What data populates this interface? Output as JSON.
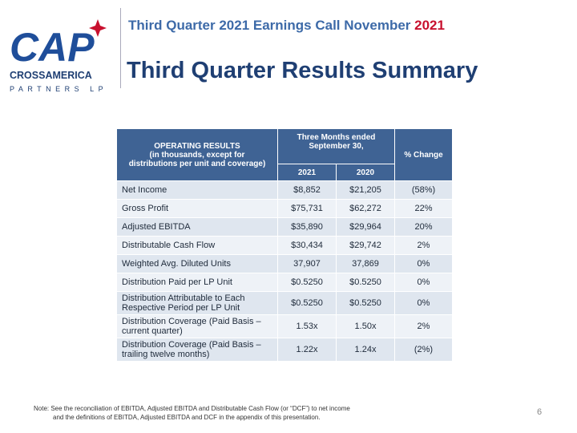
{
  "header": {
    "logo": {
      "mark": "CAP",
      "company": "CROSSAMERICA",
      "sub": "PARTNERS LP"
    },
    "event": "Third Quarter 2021 Earnings Call November",
    "event_year": "2021",
    "title": "Third Quarter Results Summary"
  },
  "table": {
    "header": {
      "first": [
        "OPERATING RESULTS",
        "(in thousands, except for",
        "distributions per unit and coverage)"
      ],
      "period": [
        "Three Months ended",
        "September 30,"
      ],
      "years": [
        "2021",
        "2020"
      ],
      "change": "% Change"
    },
    "rows": [
      [
        "Net Income",
        "$8,852",
        "$21,205",
        "(58%)"
      ],
      [
        "Gross Profit",
        "$75,731",
        "$62,272",
        "22%"
      ],
      [
        "Adjusted EBITDA",
        "$35,890",
        "$29,964",
        "20%"
      ],
      [
        "Distributable Cash Flow",
        "$30,434",
        "$29,742",
        "2%"
      ],
      [
        "Weighted Avg. Diluted Units",
        "37,907",
        "37,869",
        "0%"
      ],
      [
        "Distribution Paid per LP Unit",
        "$0.5250",
        "$0.5250",
        "0%"
      ],
      [
        "Distribution Attributable to Each Respective Period per LP Unit",
        "$0.5250",
        "$0.5250",
        "0%"
      ],
      [
        "Distribution Coverage (Paid Basis – current quarter)",
        "1.53x",
        "1.50x",
        "2%"
      ],
      [
        "Distribution Coverage (Paid Basis – trailing twelve months)",
        "1.22x",
        "1.24x",
        "(2%)"
      ]
    ]
  },
  "footer": {
    "note": [
      "Note: See the reconciliation of EBITDA, Adjusted EBITDA and Distributable Cash Flow (or “DCF”) to net income",
      "and the definitions of EBITDA, Adjusted EBITDA and DCF in the appendix of this presentation."
    ],
    "page": "6"
  }
}
